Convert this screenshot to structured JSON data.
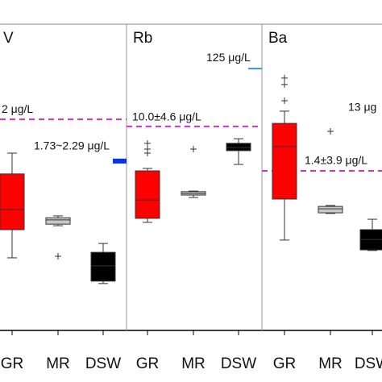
{
  "chart_data": [
    {
      "type": "box",
      "title": "V",
      "categories": [
        "GR",
        "MR",
        "DSW"
      ],
      "colors": [
        "#ff0000",
        "#c8c8c8",
        "#000000"
      ],
      "ylim": [
        0,
        100
      ],
      "boxes": [
        {
          "min": 23.7,
          "q1": 32.9,
          "median": 39.5,
          "q3": 51.1,
          "max": 57.9,
          "outliers": []
        },
        {
          "min": 34.2,
          "q1": 34.7,
          "median": 36.1,
          "q3": 36.8,
          "max": 37.4,
          "outliers": [
            24.2
          ]
        },
        {
          "min": 15.3,
          "q1": 16.1,
          "median": 21.1,
          "q3": 25.5,
          "max": 28.4,
          "outliers": []
        }
      ],
      "reference_lines": [
        {
          "value": 68.9,
          "label": "2 μg/L",
          "style": "dashed",
          "color": "#cc33cc"
        },
        {
          "value": 55.3,
          "label": "1.73~2.29 μg/L",
          "style": "bar",
          "color": "#0033ff"
        }
      ]
    },
    {
      "type": "box",
      "title": "Rb",
      "categories": [
        "GR",
        "MR",
        "DSW"
      ],
      "colors": [
        "#ff0000",
        "#c8c8c8",
        "#000000"
      ],
      "ylim": [
        0,
        100
      ],
      "boxes": [
        {
          "min": 35.3,
          "q1": 36.6,
          "median": 42.6,
          "q3": 52.1,
          "max": 52.9,
          "outliers": [
            61.1,
            59.2,
            57.9
          ]
        },
        {
          "min": 43.4,
          "q1": 44.2,
          "median": 44.7,
          "q3": 45.3,
          "max": 45.5,
          "outliers": [
            59.2
          ]
        },
        {
          "min": 54.2,
          "q1": 58.7,
          "median": 59.7,
          "q3": 61.1,
          "max": 62.6,
          "outliers": []
        }
      ],
      "reference_lines": [
        {
          "value": 66.6,
          "label": "10.0±4.6 μg/L",
          "style": "dashed",
          "color": "#cc33cc"
        },
        {
          "value": 85.5,
          "label": "125 μg/L",
          "style": "thin",
          "color": "#3399cc"
        }
      ]
    },
    {
      "type": "box",
      "title": "Ba",
      "categories": [
        "GR",
        "MR",
        "DSW"
      ],
      "colors": [
        "#ff0000",
        "#c8c8c8",
        "#000000"
      ],
      "ylim": [
        0,
        100
      ],
      "boxes": [
        {
          "min": 29.5,
          "q1": 42.9,
          "median": 60.0,
          "q3": 67.6,
          "max": 71.6,
          "outliers": [
            82.4,
            80.3,
            75.0
          ]
        },
        {
          "min": 38.2,
          "q1": 38.4,
          "median": 39.7,
          "q3": 40.5,
          "max": 40.8,
          "outliers": [
            65.0
          ]
        },
        {
          "min": 26.1,
          "q1": 26.3,
          "median": 29.7,
          "q3": 32.9,
          "max": 36.3,
          "outliers": []
        }
      ],
      "reference_lines": [
        {
          "value": 52.1,
          "label": "1.4±3.9 μg/L",
          "style": "dashed",
          "color": "#cc33cc"
        }
      ],
      "notes": [
        "13 μg"
      ]
    }
  ]
}
